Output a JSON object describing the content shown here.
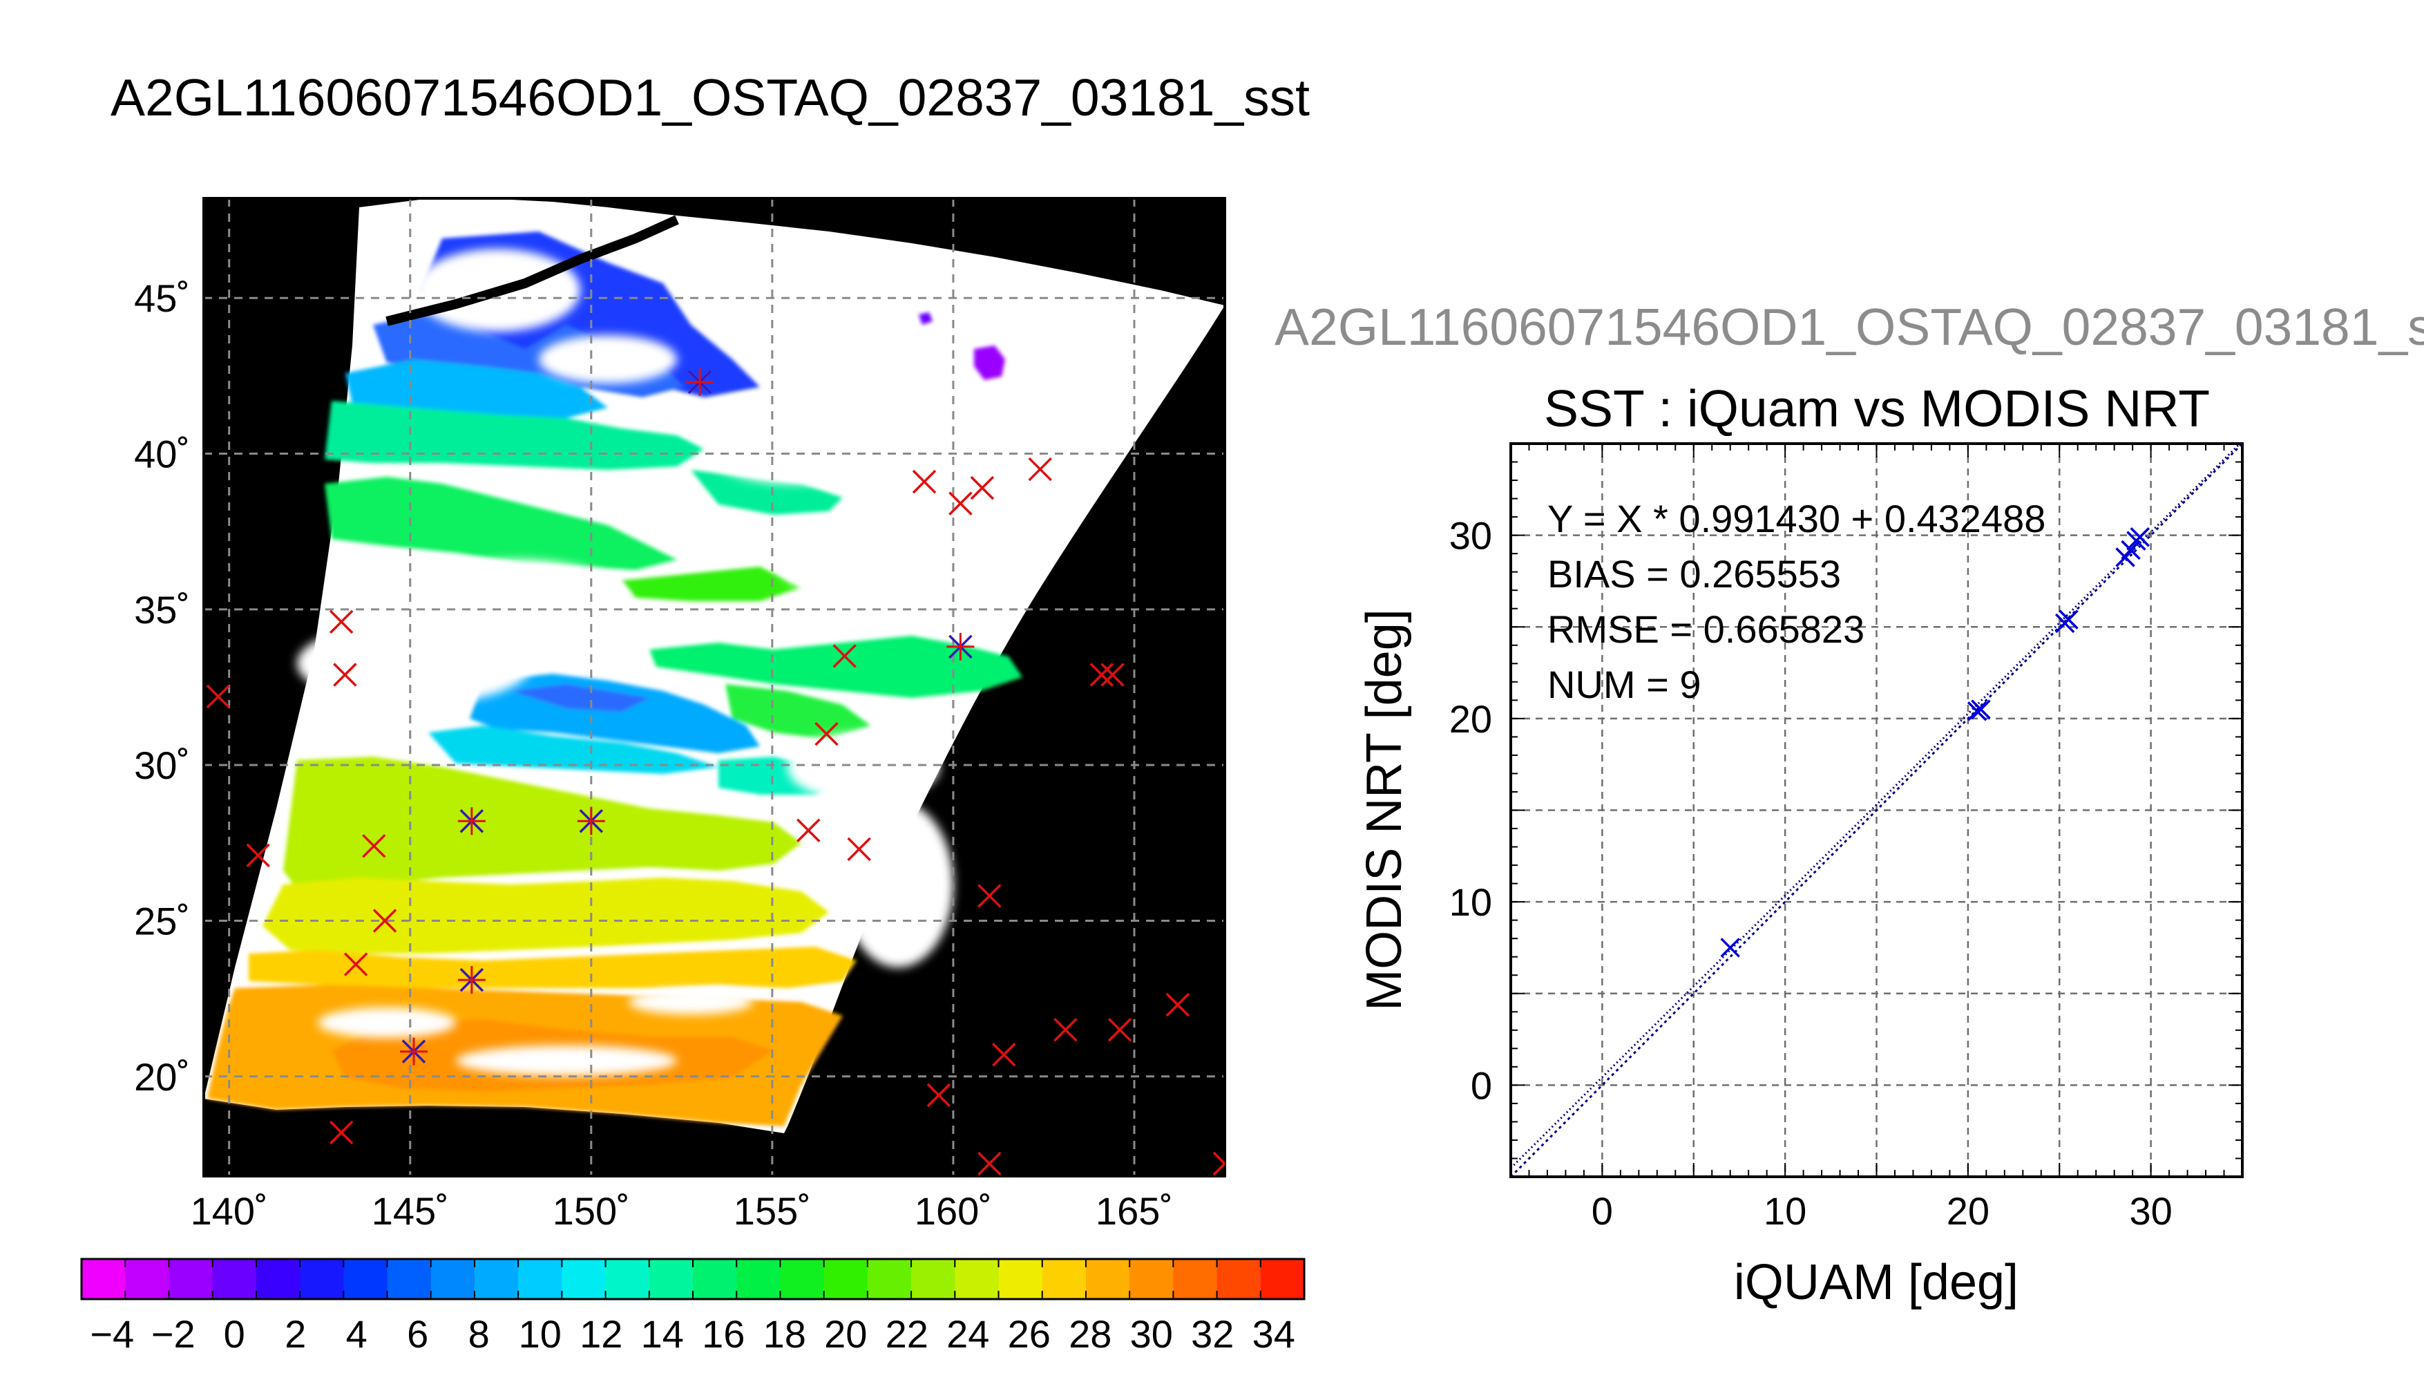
{
  "title": "A2GL11606071546OD1_OSTAQ_02837_03181_sst",
  "map": {
    "lon_ticks": [
      "140˚",
      "145˚",
      "150˚",
      "155˚",
      "160˚",
      "165˚"
    ],
    "lat_ticks": [
      "20˚",
      "25˚",
      "30˚",
      "35˚",
      "40˚",
      "45˚"
    ],
    "lon_range": [
      139.3,
      167.5
    ],
    "lat_range": [
      16.8,
      48.2
    ],
    "background_color": "#000000",
    "cloud_color": "#ffffff",
    "marker_color": "#e01010",
    "buoy_points": [
      [
        139.7,
        32.2
      ],
      [
        140.8,
        27.1
      ],
      [
        143.1,
        34.6
      ],
      [
        143.2,
        32.9
      ],
      [
        144.0,
        27.4
      ],
      [
        144.3,
        25.0
      ],
      [
        143.5,
        23.6
      ],
      [
        143.1,
        18.2
      ],
      [
        145.1,
        20.8
      ],
      [
        146.7,
        28.2
      ],
      [
        146.7,
        23.1
      ],
      [
        150.0,
        28.2
      ],
      [
        153.0,
        42.3
      ],
      [
        157.0,
        33.5
      ],
      [
        156.5,
        31.0
      ],
      [
        156.0,
        27.9
      ],
      [
        157.4,
        27.3
      ],
      [
        159.2,
        39.1
      ],
      [
        160.2,
        38.4
      ],
      [
        160.8,
        38.9
      ],
      [
        162.4,
        39.5
      ],
      [
        160.2,
        33.8
      ],
      [
        161.0,
        25.8
      ],
      [
        161.4,
        20.7
      ],
      [
        159.6,
        19.4
      ],
      [
        161.0,
        17.2
      ],
      [
        163.1,
        21.5
      ],
      [
        164.1,
        32.9
      ],
      [
        164.4,
        32.9
      ],
      [
        164.6,
        21.5
      ],
      [
        166.2,
        22.3
      ],
      [
        167.5,
        17.2
      ]
    ],
    "matched_points": [
      [
        145.1,
        20.8
      ],
      [
        146.7,
        28.2
      ],
      [
        146.7,
        23.1
      ],
      [
        150.0,
        28.2
      ],
      [
        153.0,
        42.3
      ],
      [
        160.2,
        33.8
      ]
    ]
  },
  "colorbar": {
    "min": -5,
    "max": 35,
    "tick_labels": [
      "−4",
      "−2",
      "0",
      "2",
      "4",
      "6",
      "8",
      "10",
      "12",
      "14",
      "16",
      "18",
      "20",
      "22",
      "24",
      "26",
      "28",
      "30",
      "32",
      "34"
    ],
    "colors": [
      "#f000ff",
      "#c200ff",
      "#9a00ff",
      "#6a00ff",
      "#3a00ff",
      "#1818ff",
      "#0038ff",
      "#0060ff",
      "#0088ff",
      "#00aaff",
      "#00ccff",
      "#00ecf2",
      "#00f6c8",
      "#00f59c",
      "#00f070",
      "#00f046",
      "#10f020",
      "#30f000",
      "#66f000",
      "#9af000",
      "#c8f000",
      "#eeec00",
      "#ffd000",
      "#ffb000",
      "#ff9000",
      "#ff6c00",
      "#ff4800",
      "#ff2000"
    ]
  },
  "scatter": {
    "file_title": "A2GL11606071546OD1_OSTAQ_02837_03181_s",
    "chart_title": "SST : iQuam vs MODIS NRT",
    "stats": [
      "Y = X * 0.991430 + 0.432488",
      "BIAS = 0.265553",
      "RMSE = 0.665823",
      "NUM = 9"
    ]
  },
  "chart_data": {
    "type": "scatter",
    "xlabel": "iQUAM [deg]",
    "ylabel": "MODIS NRT [deg]",
    "xlim": [
      -5,
      35
    ],
    "ylim": [
      -5,
      35
    ],
    "x_ticks": [
      0,
      10,
      20,
      30
    ],
    "y_ticks": [
      0,
      10,
      20,
      30
    ],
    "grid": true,
    "series": [
      {
        "color": "#0000dd",
        "x": [
          7.0,
          20.5,
          20.7,
          25.3,
          25.5,
          28.6,
          28.9,
          29.2,
          29.4
        ],
        "y": [
          7.5,
          20.4,
          20.5,
          25.2,
          25.4,
          28.8,
          29.2,
          29.7,
          29.9
        ]
      }
    ],
    "fit_line": {
      "slope": 0.99143,
      "intercept": 0.432488,
      "color": "#000080"
    },
    "identity_line": {
      "color": "#000080"
    }
  }
}
